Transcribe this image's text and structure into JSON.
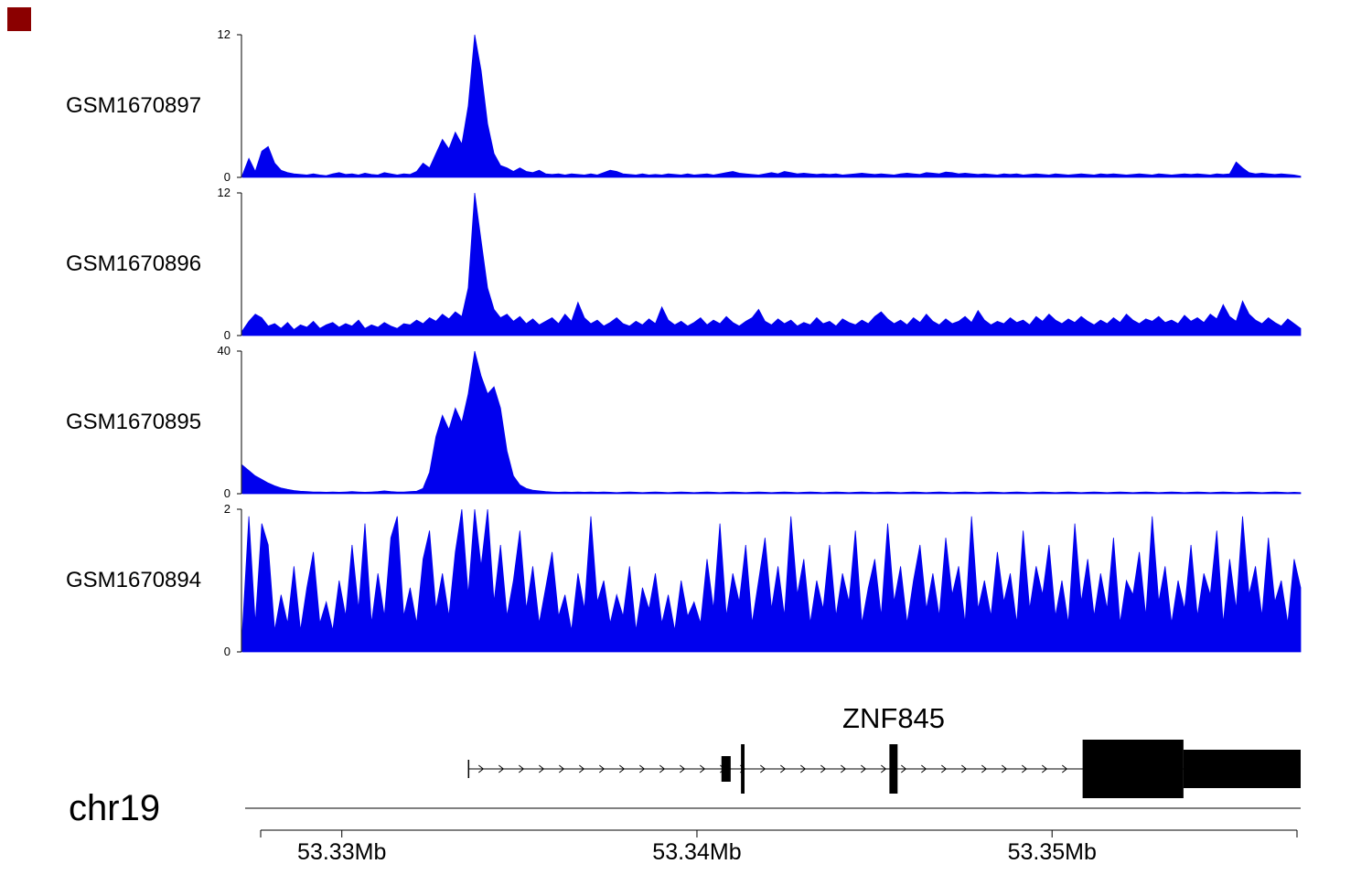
{
  "decorations": {
    "corner_marker_color": "#8b0000"
  },
  "chromosome_label": "chr19",
  "axis": {
    "range_mb": [
      53.3272,
      53.357
    ],
    "ticks": [
      {
        "mb": 53.33,
        "label": "53.33Mb"
      },
      {
        "mb": 53.34,
        "label": "53.34Mb"
      },
      {
        "mb": 53.35,
        "label": "53.35Mb"
      }
    ]
  },
  "gene_track": {
    "gene_name": "ZNF845",
    "direction": "right",
    "label_anchor_mb": 53.34554,
    "tx_start_mb": 53.33357,
    "tx_end_mb": 53.357,
    "exons": [
      {
        "start_mb": 53.34069,
        "end_mb": 53.34095,
        "kind": "small"
      },
      {
        "start_mb": 53.34124,
        "end_mb": 53.34134,
        "kind": "thin"
      },
      {
        "start_mb": 53.34542,
        "end_mb": 53.34565,
        "kind": "thin"
      },
      {
        "start_mb": 53.35086,
        "end_mb": 53.3537,
        "kind": "coding"
      },
      {
        "start_mb": 53.3537,
        "end_mb": 53.357,
        "kind": "utr"
      }
    ]
  },
  "chart_data": [
    {
      "type": "area",
      "name": "GSM1670897",
      "ylim": [
        0,
        12
      ],
      "color": "#0000EE",
      "x_range_mb": [
        53.3272,
        53.357
      ],
      "values": [
        0.2,
        1.6,
        0.5,
        2.2,
        2.6,
        1.2,
        0.6,
        0.4,
        0.3,
        0.25,
        0.2,
        0.3,
        0.2,
        0.15,
        0.3,
        0.4,
        0.25,
        0.3,
        0.2,
        0.35,
        0.25,
        0.2,
        0.4,
        0.3,
        0.2,
        0.3,
        0.25,
        0.5,
        1.2,
        0.8,
        2.0,
        3.2,
        2.4,
        3.8,
        2.8,
        6.0,
        12.0,
        9.0,
        4.5,
        2.0,
        1.0,
        0.8,
        0.5,
        0.8,
        0.5,
        0.4,
        0.6,
        0.3,
        0.25,
        0.3,
        0.2,
        0.3,
        0.25,
        0.2,
        0.3,
        0.2,
        0.4,
        0.6,
        0.5,
        0.3,
        0.25,
        0.2,
        0.3,
        0.2,
        0.25,
        0.2,
        0.3,
        0.25,
        0.2,
        0.3,
        0.2,
        0.25,
        0.3,
        0.2,
        0.3,
        0.4,
        0.5,
        0.35,
        0.3,
        0.25,
        0.2,
        0.3,
        0.4,
        0.3,
        0.5,
        0.4,
        0.3,
        0.35,
        0.3,
        0.25,
        0.3,
        0.25,
        0.3,
        0.2,
        0.25,
        0.3,
        0.35,
        0.3,
        0.25,
        0.3,
        0.25,
        0.2,
        0.3,
        0.35,
        0.3,
        0.25,
        0.4,
        0.35,
        0.3,
        0.45,
        0.4,
        0.3,
        0.35,
        0.3,
        0.25,
        0.3,
        0.25,
        0.2,
        0.3,
        0.25,
        0.3,
        0.2,
        0.25,
        0.3,
        0.25,
        0.2,
        0.3,
        0.25,
        0.2,
        0.25,
        0.3,
        0.25,
        0.2,
        0.3,
        0.25,
        0.3,
        0.25,
        0.2,
        0.25,
        0.3,
        0.25,
        0.2,
        0.3,
        0.25,
        0.2,
        0.25,
        0.3,
        0.25,
        0.3,
        0.25,
        0.2,
        0.3,
        0.25,
        0.3,
        1.3,
        0.8,
        0.4,
        0.3,
        0.35,
        0.3,
        0.25,
        0.3,
        0.25,
        0.2,
        0.1
      ]
    },
    {
      "type": "area",
      "name": "GSM1670896",
      "ylim": [
        0,
        12
      ],
      "color": "#0000EE",
      "x_range_mb": [
        53.3272,
        53.357
      ],
      "values": [
        0.4,
        1.2,
        1.8,
        1.5,
        0.8,
        1.0,
        0.6,
        1.1,
        0.5,
        0.9,
        0.7,
        1.2,
        0.6,
        0.9,
        1.1,
        0.7,
        1.0,
        0.8,
        1.3,
        0.6,
        0.9,
        0.7,
        1.1,
        0.8,
        0.6,
        1.0,
        0.9,
        1.3,
        1.0,
        1.5,
        1.2,
        1.8,
        1.4,
        2.0,
        1.6,
        4.0,
        12.0,
        8.0,
        4.0,
        2.2,
        1.5,
        1.8,
        1.2,
        1.6,
        1.0,
        1.4,
        0.9,
        1.2,
        1.5,
        1.0,
        1.8,
        1.2,
        2.8,
        1.5,
        1.0,
        1.3,
        0.8,
        1.1,
        1.5,
        1.0,
        0.8,
        1.2,
        0.9,
        1.4,
        1.0,
        2.4,
        1.3,
        0.9,
        1.2,
        0.8,
        1.1,
        1.5,
        0.9,
        1.3,
        1.0,
        1.6,
        1.1,
        0.8,
        1.2,
        1.5,
        2.2,
        1.2,
        0.9,
        1.4,
        1.0,
        1.3,
        0.8,
        1.1,
        0.9,
        1.5,
        1.0,
        1.2,
        0.8,
        1.4,
        1.1,
        0.9,
        1.3,
        1.0,
        1.6,
        2.0,
        1.4,
        1.0,
        1.3,
        0.9,
        1.5,
        1.1,
        1.8,
        1.2,
        0.9,
        1.4,
        1.0,
        1.2,
        1.6,
        1.1,
        2.1,
        1.3,
        0.9,
        1.2,
        1.0,
        1.5,
        1.1,
        1.3,
        0.9,
        1.6,
        1.2,
        1.8,
        1.3,
        1.0,
        1.4,
        1.1,
        1.6,
        1.2,
        0.9,
        1.3,
        1.0,
        1.5,
        1.1,
        1.8,
        1.3,
        1.0,
        1.4,
        1.2,
        1.6,
        1.1,
        1.3,
        1.0,
        1.7,
        1.2,
        1.5,
        1.1,
        1.8,
        1.4,
        2.6,
        1.6,
        1.2,
        2.9,
        1.8,
        1.3,
        1.0,
        1.5,
        1.1,
        0.8,
        1.4,
        1.0,
        0.6
      ]
    },
    {
      "type": "area",
      "name": "GSM1670895",
      "ylim": [
        0,
        40
      ],
      "color": "#0000EE",
      "x_range_mb": [
        53.3272,
        53.357
      ],
      "values": [
        8.0,
        6.5,
        5.0,
        4.0,
        3.0,
        2.2,
        1.6,
        1.2,
        0.9,
        0.7,
        0.6,
        0.5,
        0.5,
        0.4,
        0.5,
        0.4,
        0.5,
        0.6,
        0.5,
        0.4,
        0.5,
        0.6,
        0.8,
        0.6,
        0.5,
        0.5,
        0.6,
        0.7,
        1.5,
        6.0,
        16.0,
        22.0,
        18.0,
        24.0,
        20.0,
        28.0,
        40.0,
        33.0,
        28.0,
        30.0,
        24.0,
        12.0,
        5.0,
        2.5,
        1.5,
        1.0,
        0.8,
        0.6,
        0.5,
        0.4,
        0.5,
        0.4,
        0.5,
        0.4,
        0.5,
        0.4,
        0.5,
        0.4,
        0.3,
        0.4,
        0.5,
        0.4,
        0.3,
        0.4,
        0.5,
        0.4,
        0.3,
        0.4,
        0.5,
        0.4,
        0.3,
        0.4,
        0.5,
        0.4,
        0.3,
        0.4,
        0.5,
        0.4,
        0.3,
        0.4,
        0.5,
        0.4,
        0.3,
        0.4,
        0.5,
        0.4,
        0.3,
        0.4,
        0.5,
        0.4,
        0.3,
        0.4,
        0.5,
        0.4,
        0.3,
        0.4,
        0.5,
        0.4,
        0.3,
        0.4,
        0.5,
        0.4,
        0.3,
        0.4,
        0.5,
        0.4,
        0.3,
        0.4,
        0.5,
        0.4,
        0.3,
        0.4,
        0.5,
        0.4,
        0.3,
        0.4,
        0.5,
        0.4,
        0.3,
        0.4,
        0.5,
        0.4,
        0.3,
        0.4,
        0.5,
        0.4,
        0.3,
        0.4,
        0.5,
        0.4,
        0.3,
        0.4,
        0.5,
        0.4,
        0.3,
        0.4,
        0.5,
        0.4,
        0.3,
        0.4,
        0.5,
        0.4,
        0.3,
        0.4,
        0.5,
        0.4,
        0.3,
        0.4,
        0.5,
        0.4,
        0.3,
        0.4,
        0.5,
        0.4,
        0.3,
        0.4,
        0.5,
        0.4,
        0.3,
        0.4,
        0.5,
        0.4,
        0.3,
        0.4,
        0.3
      ]
    },
    {
      "type": "area",
      "name": "GSM1670894",
      "ylim": [
        0,
        2
      ],
      "color": "#0000EE",
      "x_range_mb": [
        53.3272,
        53.357
      ],
      "values": [
        0.3,
        1.9,
        0.4,
        1.8,
        1.5,
        0.3,
        0.8,
        0.4,
        1.2,
        0.3,
        0.9,
        1.4,
        0.4,
        0.7,
        0.3,
        1.0,
        0.5,
        1.5,
        0.6,
        1.8,
        0.4,
        1.1,
        0.5,
        1.6,
        1.9,
        0.5,
        0.9,
        0.4,
        1.3,
        1.7,
        0.6,
        1.1,
        0.5,
        1.4,
        2.0,
        0.8,
        2.0,
        1.2,
        2.0,
        0.7,
        1.5,
        0.5,
        1.0,
        1.7,
        0.6,
        1.2,
        0.4,
        0.9,
        1.4,
        0.5,
        0.8,
        0.3,
        1.1,
        0.6,
        1.9,
        0.7,
        1.0,
        0.4,
        0.8,
        0.5,
        1.2,
        0.3,
        0.9,
        0.6,
        1.1,
        0.4,
        0.8,
        0.3,
        1.0,
        0.5,
        0.7,
        0.4,
        1.3,
        0.6,
        1.8,
        0.5,
        1.1,
        0.7,
        1.5,
        0.4,
        1.0,
        1.6,
        0.6,
        1.2,
        0.5,
        1.9,
        0.8,
        1.3,
        0.4,
        1.0,
        0.6,
        1.5,
        0.5,
        1.1,
        0.7,
        1.7,
        0.4,
        0.9,
        1.3,
        0.5,
        1.8,
        0.7,
        1.2,
        0.4,
        1.0,
        1.5,
        0.6,
        1.1,
        0.5,
        1.6,
        0.8,
        1.2,
        0.4,
        1.9,
        0.6,
        1.0,
        0.5,
        1.4,
        0.7,
        1.1,
        0.4,
        1.7,
        0.6,
        1.2,
        0.8,
        1.5,
        0.5,
        1.0,
        0.4,
        1.8,
        0.7,
        1.3,
        0.5,
        1.1,
        0.6,
        1.6,
        0.4,
        1.0,
        0.8,
        1.4,
        0.5,
        1.9,
        0.7,
        1.2,
        0.4,
        1.0,
        0.6,
        1.5,
        0.5,
        1.1,
        0.8,
        1.7,
        0.4,
        1.3,
        0.6,
        1.9,
        0.8,
        1.2,
        0.5,
        1.6,
        0.7,
        1.0,
        0.4,
        1.3,
        0.9
      ]
    }
  ]
}
